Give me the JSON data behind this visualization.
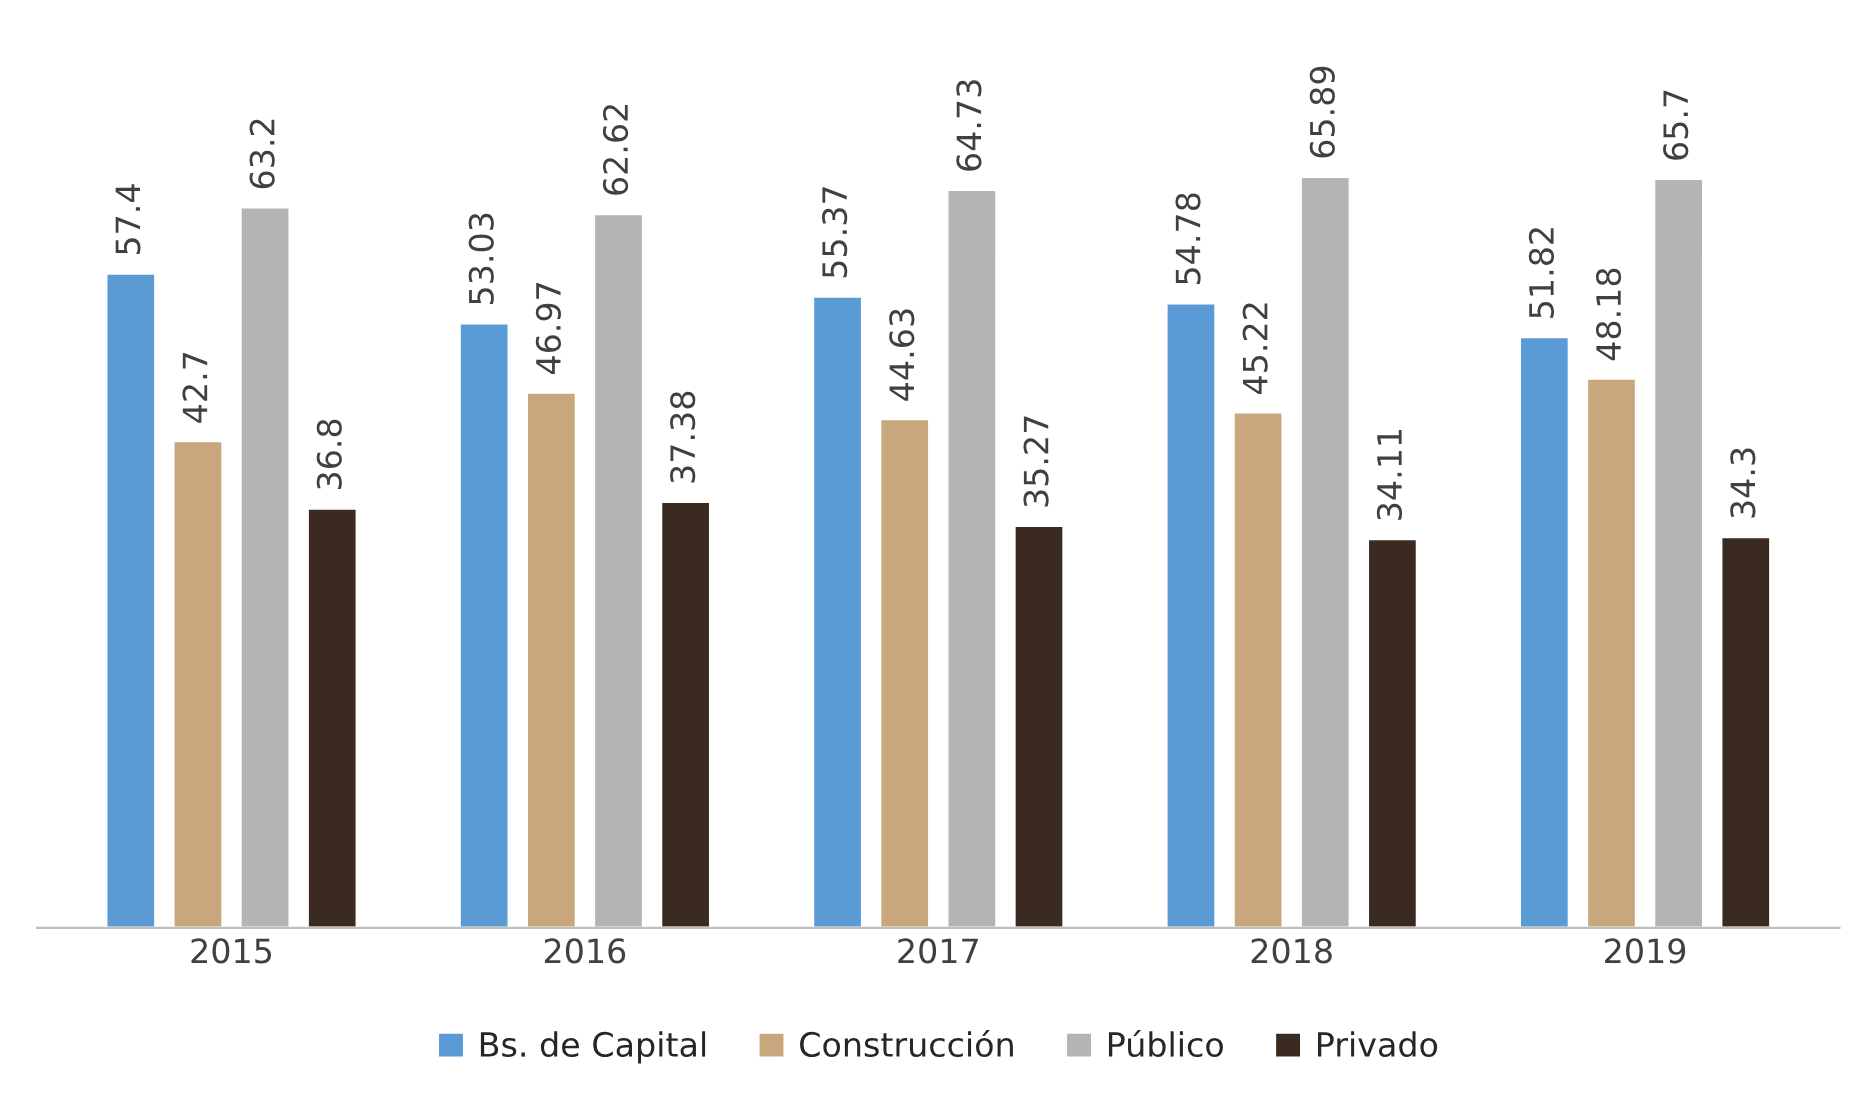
{
  "chart_data": {
    "type": "bar",
    "categories": [
      "2015",
      "2016",
      "2017",
      "2018",
      "2019"
    ],
    "series": [
      {
        "name": "Bs. de Capital",
        "color": "#5b9bd5",
        "values": [
          57.4,
          53.03,
          55.37,
          54.78,
          51.82
        ]
      },
      {
        "name": "Construcción",
        "color": "#c9a77c",
        "values": [
          42.7,
          46.97,
          44.63,
          45.22,
          48.18
        ]
      },
      {
        "name": "Público",
        "color": "#b4b4b4",
        "values": [
          63.2,
          62.62,
          64.73,
          65.89,
          65.7
        ]
      },
      {
        "name": "Privado",
        "color": "#3a2a1f",
        "values": [
          36.8,
          37.38,
          35.27,
          34.11,
          34.3
        ]
      }
    ],
    "data_labels": true,
    "legend": "bottom",
    "grid": false
  }
}
